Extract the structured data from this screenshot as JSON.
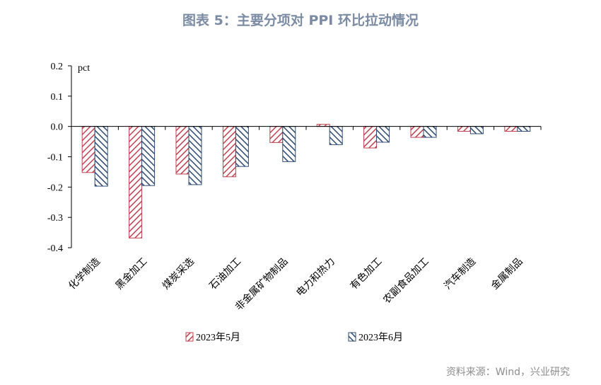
{
  "title": "图表 5：主要分项对 PPI 环比拉动情况",
  "source": "资料来源：Wind，兴业研究",
  "colors": {
    "title": "#7b8ba3",
    "source": "#8c8c8c",
    "series_may": "#c0404f",
    "series_june": "#2f4a72",
    "axis": "#000000"
  },
  "chart_data": {
    "type": "bar",
    "unit_label": "pct",
    "ylim": [
      -0.4,
      0.2
    ],
    "yticks": [
      "0.2",
      "0.1",
      "0.0",
      "-0.1",
      "-0.2",
      "-0.3",
      "-0.4"
    ],
    "categories": [
      "化学制造",
      "黑金加工",
      "煤炭采选",
      "石油加工",
      "非金属矿物制品",
      "电力和热力",
      "有色加工",
      "农副食品加工",
      "汽车制造",
      "金属制品"
    ],
    "series": [
      {
        "name": "2023年5月",
        "values": [
          -0.152,
          -0.368,
          -0.157,
          -0.166,
          -0.053,
          0.007,
          -0.071,
          -0.036,
          -0.016,
          -0.016
        ]
      },
      {
        "name": "2023年6月",
        "values": [
          -0.197,
          -0.195,
          -0.192,
          -0.132,
          -0.116,
          -0.06,
          -0.052,
          -0.036,
          -0.024,
          -0.016
        ]
      }
    ],
    "grid": false,
    "legend_position": "bottom"
  }
}
